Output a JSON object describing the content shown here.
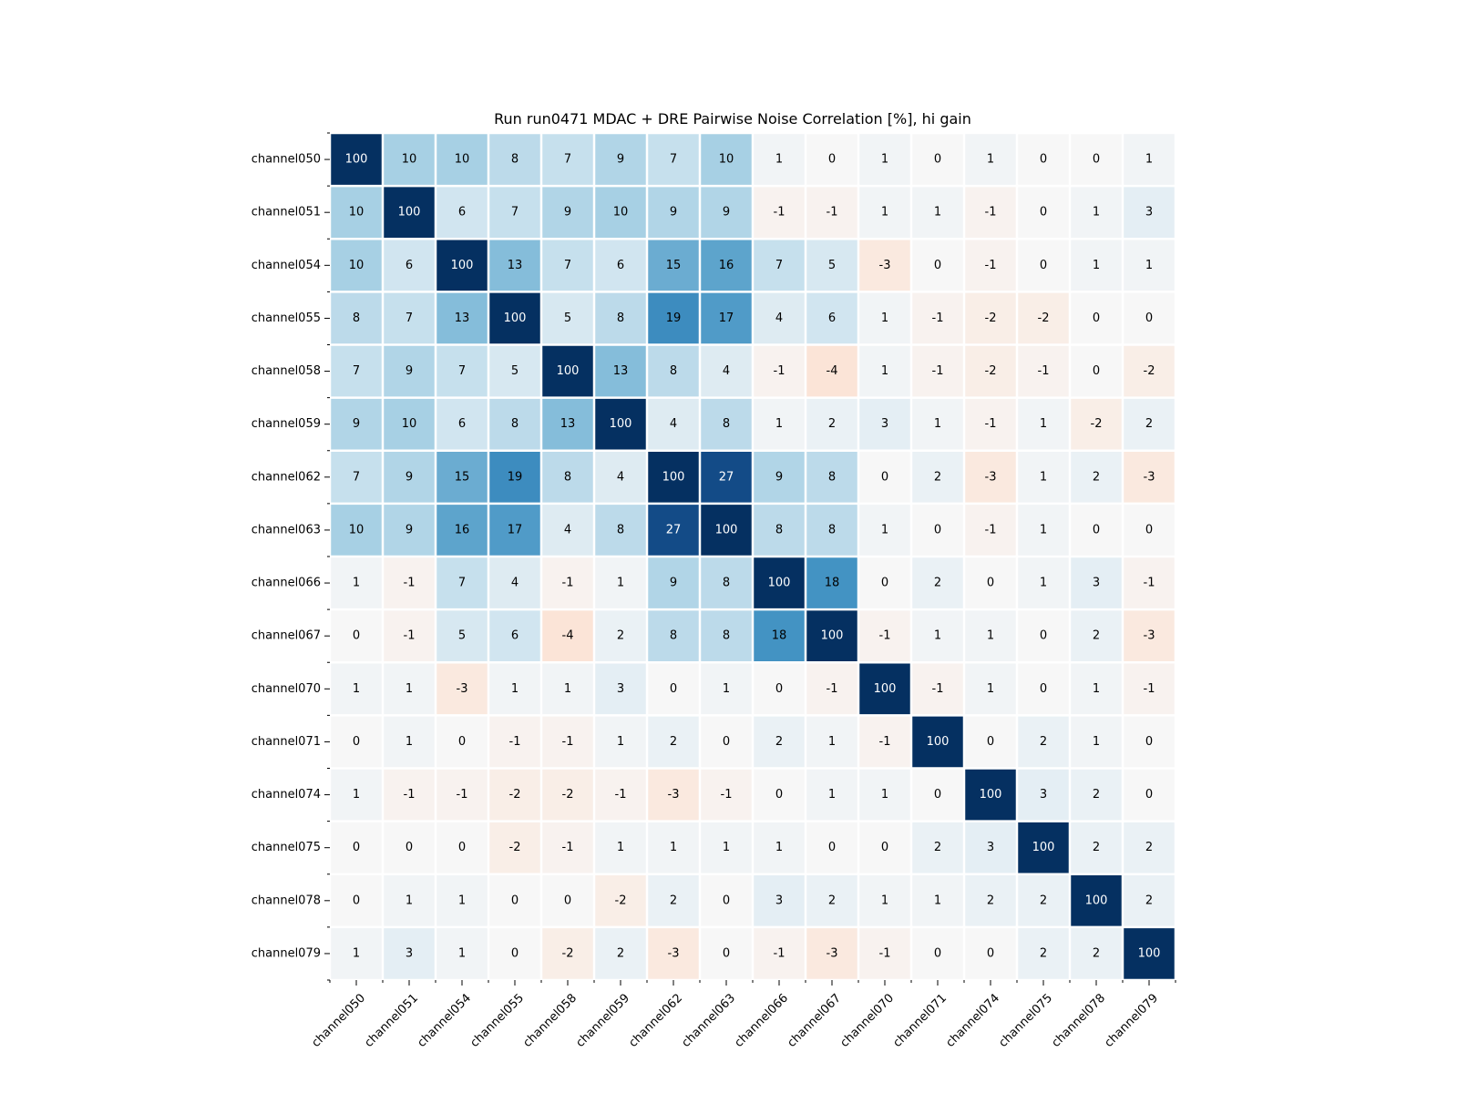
{
  "chart_data": {
    "type": "heatmap",
    "title": "Run run0471 MDAC + DRE Pairwise Noise Correlation [%], hi gain",
    "xlabel": "",
    "ylabel": "",
    "row_labels": [
      "channel050",
      "channel051",
      "channel054",
      "channel055",
      "channel058",
      "channel059",
      "channel062",
      "channel063",
      "channel066",
      "channel067",
      "channel070",
      "channel071",
      "channel074",
      "channel075",
      "channel078",
      "channel079"
    ],
    "col_labels": [
      "channel050",
      "channel051",
      "channel054",
      "channel055",
      "channel058",
      "channel059",
      "channel062",
      "channel063",
      "channel066",
      "channel067",
      "channel070",
      "channel071",
      "channel074",
      "channel075",
      "channel078",
      "channel079"
    ],
    "value_range": [
      -30,
      30
    ],
    "colormap": "RdBu_r (negative = red, positive = blue, saturated above 30)",
    "values": [
      [
        100,
        10,
        10,
        8,
        7,
        9,
        7,
        10,
        1,
        0,
        1,
        0,
        1,
        0,
        0,
        1
      ],
      [
        10,
        100,
        6,
        7,
        9,
        10,
        9,
        9,
        -1,
        -1,
        1,
        1,
        -1,
        0,
        1,
        3
      ],
      [
        10,
        6,
        100,
        13,
        7,
        6,
        15,
        16,
        7,
        5,
        -3,
        0,
        -1,
        0,
        1,
        1
      ],
      [
        8,
        7,
        13,
        100,
        5,
        8,
        19,
        17,
        4,
        6,
        1,
        -1,
        -2,
        -2,
        0,
        0
      ],
      [
        7,
        9,
        7,
        5,
        100,
        13,
        8,
        4,
        -1,
        -4,
        1,
        -1,
        -2,
        -1,
        0,
        -2
      ],
      [
        9,
        10,
        6,
        8,
        13,
        100,
        4,
        8,
        1,
        2,
        3,
        1,
        -1,
        1,
        -2,
        2
      ],
      [
        7,
        9,
        15,
        19,
        8,
        4,
        100,
        27,
        9,
        8,
        0,
        2,
        -3,
        1,
        2,
        -3
      ],
      [
        10,
        9,
        16,
        17,
        4,
        8,
        27,
        100,
        8,
        8,
        1,
        0,
        -1,
        1,
        0,
        0
      ],
      [
        1,
        -1,
        7,
        4,
        -1,
        1,
        9,
        8,
        100,
        18,
        0,
        2,
        0,
        1,
        3,
        -1
      ],
      [
        0,
        -1,
        5,
        6,
        -4,
        2,
        8,
        8,
        18,
        100,
        -1,
        1,
        1,
        0,
        2,
        -3
      ],
      [
        1,
        1,
        -3,
        1,
        1,
        3,
        0,
        1,
        0,
        -1,
        100,
        -1,
        1,
        0,
        1,
        -1
      ],
      [
        0,
        1,
        0,
        -1,
        -1,
        1,
        2,
        0,
        2,
        1,
        -1,
        100,
        0,
        2,
        1,
        0
      ],
      [
        1,
        -1,
        -1,
        -2,
        -2,
        -1,
        -3,
        -1,
        0,
        1,
        1,
        0,
        100,
        3,
        2,
        0
      ],
      [
        0,
        0,
        0,
        -2,
        -1,
        1,
        1,
        1,
        1,
        0,
        0,
        2,
        3,
        100,
        2,
        2
      ],
      [
        0,
        1,
        1,
        0,
        0,
        -2,
        2,
        0,
        3,
        2,
        1,
        1,
        2,
        2,
        100,
        2
      ],
      [
        1,
        3,
        1,
        0,
        -2,
        2,
        -3,
        0,
        -1,
        -3,
        -1,
        0,
        0,
        2,
        2,
        100
      ]
    ],
    "grid": false,
    "legend": "none"
  }
}
